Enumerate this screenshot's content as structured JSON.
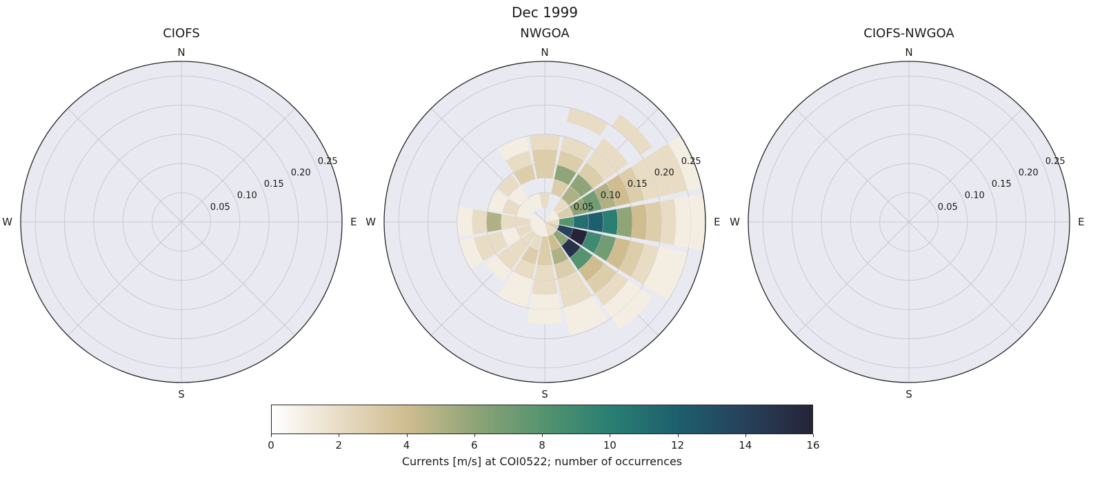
{
  "figure": {
    "title": "Dec 1999"
  },
  "compass_labels": {
    "n": "N",
    "e": "E",
    "s": "S",
    "w": "W"
  },
  "radial_axis": {
    "rmax": 0.275,
    "tick_values": [
      0.05,
      0.1,
      0.15,
      0.2,
      0.25
    ],
    "tick_labels": [
      "0.05",
      "0.10",
      "0.15",
      "0.20",
      "0.25"
    ],
    "label_angle_deg": 67
  },
  "colormap": {
    "vmin": 0,
    "vmax": 16,
    "stops": [
      "#ffffff",
      "#e8dcc5",
      "#cfbd90",
      "#8fa477",
      "#55946f",
      "#2a7f72",
      "#1d5f6e",
      "#27415b",
      "#262338"
    ]
  },
  "colorbar": {
    "tick_values": [
      0,
      2,
      4,
      6,
      8,
      10,
      12,
      14,
      16
    ],
    "label": "Currents [m/s] at COI0522; number of occurrences"
  },
  "style": {
    "polar_face": "#e9e9f1",
    "grid_color": "#c9c9d4",
    "spine_color": "#26262b",
    "text_color": "#1a1a1a"
  },
  "chart_data": [
    {
      "type": "heatmap",
      "projection": "polar",
      "title": "CIOFS",
      "rmax": 0.275,
      "radial_tick_values": [
        0.05,
        0.1,
        0.15,
        0.2,
        0.25
      ],
      "angular_labels": [
        "N",
        "E",
        "S",
        "W"
      ],
      "counts": [],
      "note": "no occurrences plotted (empty rose)"
    },
    {
      "type": "heatmap",
      "projection": "polar",
      "title": "NWGOA",
      "rmax": 0.275,
      "radial_tick_values": [
        0.05,
        0.1,
        0.15,
        0.2,
        0.25
      ],
      "angular_labels": [
        "N",
        "E",
        "S",
        "W"
      ],
      "value_label": "number of occurrences",
      "value_range": [
        0,
        16
      ],
      "direction_labels": [
        "N",
        "NNE",
        "NE",
        "ENE",
        "E",
        "ESE",
        "SE",
        "SSE",
        "S",
        "SSW",
        "SW",
        "WSW",
        "W",
        "WNW",
        "NW",
        "NNW"
      ],
      "direction_bin_centers_deg": [
        0,
        22.5,
        45,
        67.5,
        90,
        112.5,
        135,
        157.5,
        180,
        202.5,
        225,
        247.5,
        270,
        292.5,
        315,
        337.5
      ],
      "direction_bin_width_deg": 22.5,
      "speed_bin_edges_m_per_s": [
        0,
        0.025,
        0.05,
        0.075,
        0.1,
        0.125,
        0.15,
        0.175,
        0.2,
        0.225,
        0.25,
        0.275
      ],
      "counts": [
        [
          0,
          2,
          0,
          3,
          3,
          2,
          0,
          0,
          0,
          0,
          0
        ],
        [
          0,
          0,
          3,
          6,
          3,
          2,
          0,
          2,
          0,
          0,
          0
        ],
        [
          1,
          2,
          5,
          6,
          3,
          2,
          2,
          0,
          2,
          0,
          0
        ],
        [
          1,
          3,
          6,
          7,
          5,
          4,
          3,
          2,
          2,
          2,
          1
        ],
        [
          2,
          8,
          11,
          12,
          10,
          6,
          4,
          3,
          2,
          1,
          1
        ],
        [
          3,
          14,
          16,
          9,
          7,
          4,
          3,
          2,
          1,
          1,
          0
        ],
        [
          2,
          6,
          15,
          8,
          4,
          3,
          2,
          1,
          1,
          0,
          0
        ],
        [
          2,
          4,
          5,
          3,
          2,
          2,
          1,
          1,
          0,
          0,
          0
        ],
        [
          1,
          3,
          3,
          2,
          2,
          1,
          1,
          0,
          0,
          0,
          0
        ],
        [
          1,
          2,
          3,
          2,
          1,
          1,
          0,
          0,
          0,
          0,
          0
        ],
        [
          1,
          2,
          2,
          2,
          1,
          0,
          0,
          0,
          0,
          0,
          0
        ],
        [
          1,
          2,
          1,
          2,
          2,
          1,
          0,
          0,
          0,
          0,
          0
        ],
        [
          1,
          2,
          2,
          5,
          2,
          1,
          0,
          0,
          0,
          0,
          0
        ],
        [
          1,
          1,
          2,
          1,
          0,
          0,
          0,
          0,
          0,
          0,
          0
        ],
        [
          0,
          1,
          1,
          2,
          0,
          0,
          0,
          0,
          0,
          0,
          0
        ],
        [
          0,
          1,
          0,
          3,
          2,
          1,
          0,
          0,
          0,
          0,
          0
        ]
      ]
    },
    {
      "type": "heatmap",
      "projection": "polar",
      "title": "CIOFS-NWGOA",
      "rmax": 0.275,
      "radial_tick_values": [
        0.05,
        0.1,
        0.15,
        0.2,
        0.25
      ],
      "angular_labels": [
        "N",
        "E",
        "S",
        "W"
      ],
      "counts": [],
      "note": "no occurrences plotted (empty rose)"
    }
  ]
}
